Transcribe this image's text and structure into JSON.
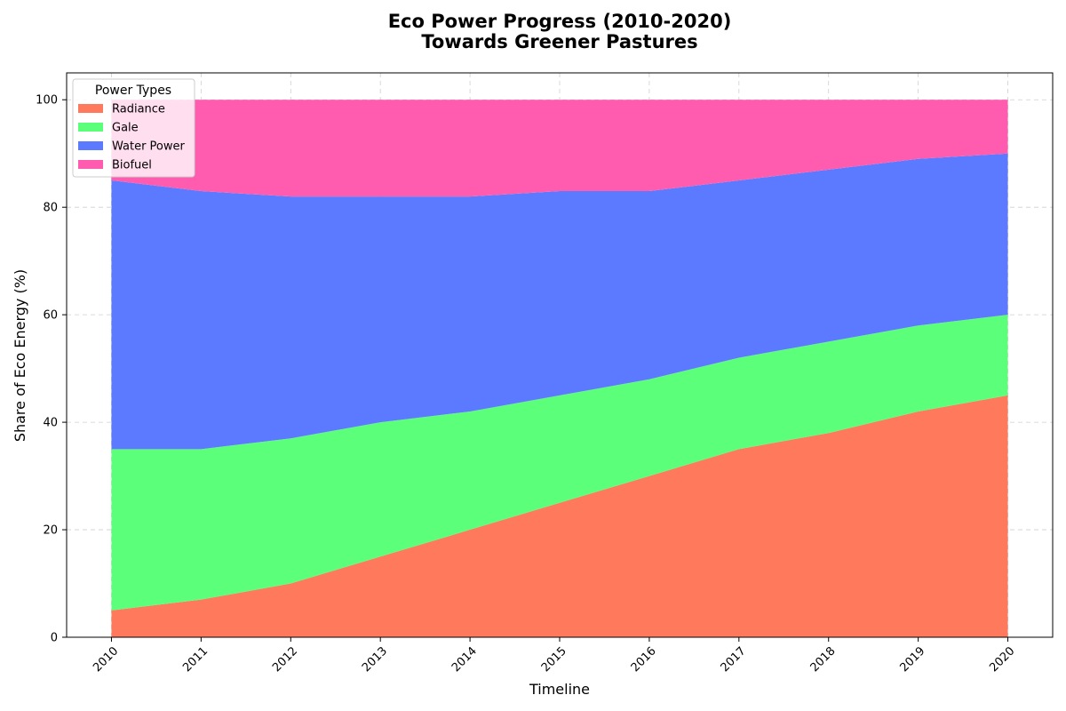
{
  "chart_data": {
    "type": "area",
    "stacked": true,
    "title": "Eco Power Progress (2010-2020)",
    "subtitle": "Towards Greener Pastures",
    "xlabel": "Timeline",
    "ylabel": "Share of Eco Energy (%)",
    "x": [
      "2010",
      "2011",
      "2012",
      "2013",
      "2014",
      "2015",
      "2016",
      "2017",
      "2018",
      "2019",
      "2020"
    ],
    "xlim": [
      2009.5,
      2020.5
    ],
    "ylim": [
      0,
      105
    ],
    "yticks": [
      0,
      20,
      40,
      60,
      80,
      100
    ],
    "grid": true,
    "legend": {
      "title": "Power Types",
      "placement": "top-left"
    },
    "series": [
      {
        "name": "Radiance",
        "color": "#ff7a5c",
        "values": [
          5,
          7,
          10,
          15,
          20,
          25,
          30,
          35,
          38,
          42,
          45
        ]
      },
      {
        "name": "Gale",
        "color": "#5cff7a",
        "values": [
          30,
          28,
          27,
          25,
          22,
          20,
          18,
          17,
          17,
          16,
          15
        ]
      },
      {
        "name": "Water Power",
        "color": "#5c7aff",
        "values": [
          50,
          48,
          45,
          42,
          40,
          38,
          35,
          33,
          32,
          31,
          30
        ]
      },
      {
        "name": "Biofuel",
        "color": "#ff5cb0",
        "values": [
          15,
          17,
          18,
          18,
          18,
          17,
          17,
          15,
          13,
          11,
          10
        ]
      }
    ]
  }
}
